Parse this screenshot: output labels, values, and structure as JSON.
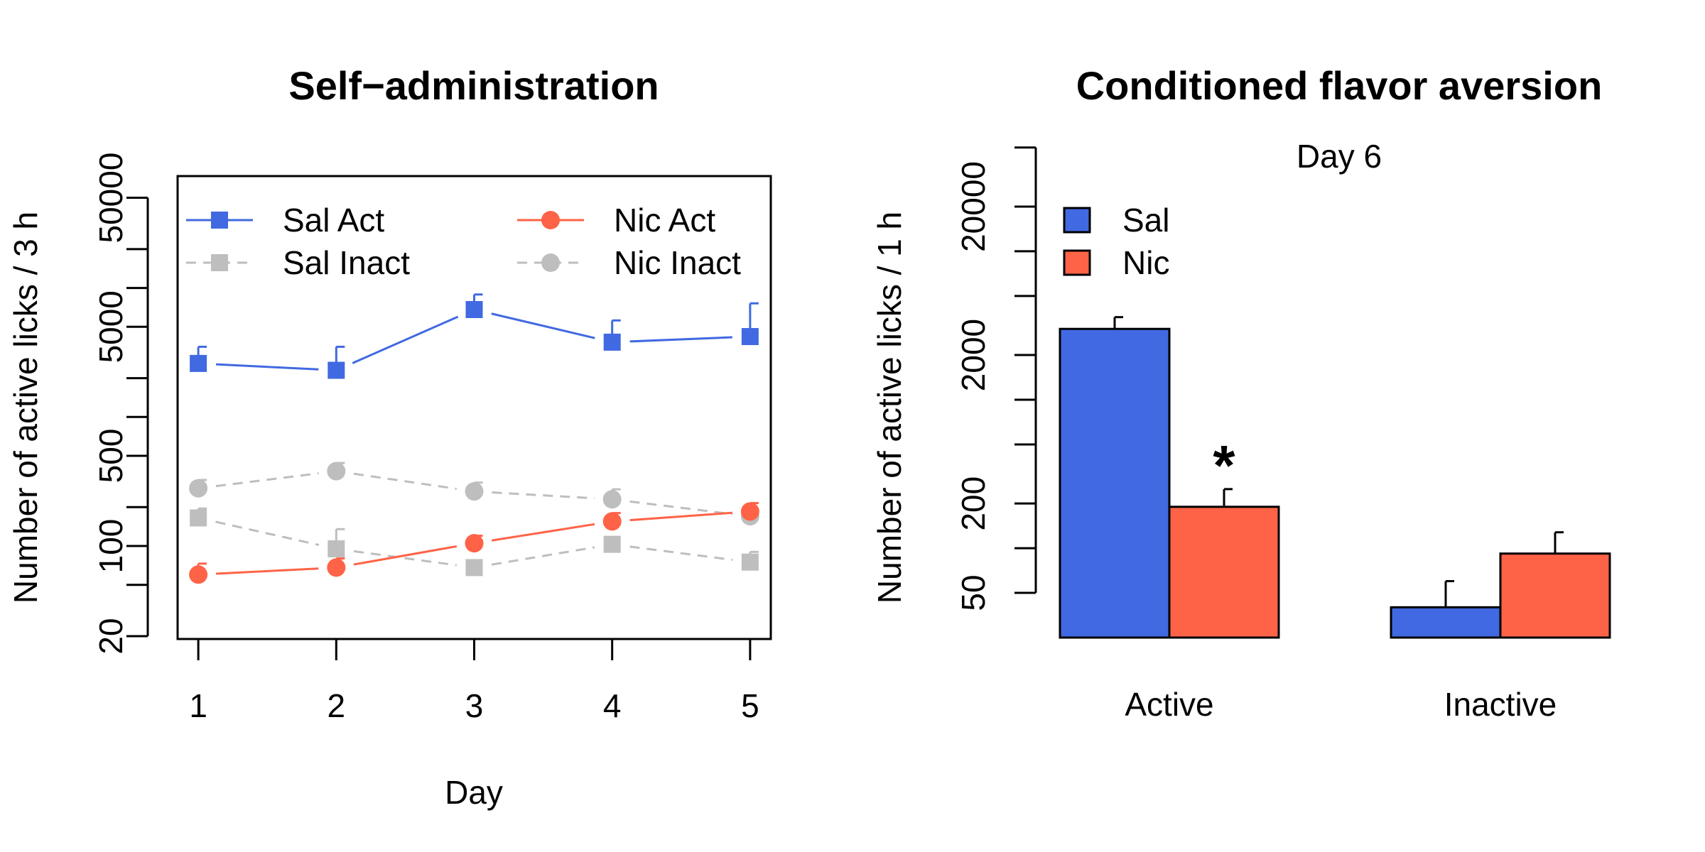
{
  "chart_data": [
    {
      "type": "line",
      "title": "Self−administration",
      "xlabel": "Day",
      "ylabel": "Number of active licks / 3 h",
      "y_scale": "log",
      "ylim": [
        20,
        70000
      ],
      "xlim": [
        0.85,
        5.15
      ],
      "x": [
        1,
        2,
        3,
        4,
        5
      ],
      "x_tick_labels": [
        "1",
        "2",
        "3",
        "4",
        "5"
      ],
      "y_tick_values": [
        20,
        50,
        100,
        200,
        500,
        1000,
        2000,
        5000,
        10000,
        20000,
        50000
      ],
      "y_tick_labels": [
        "20",
        "",
        "100",
        "",
        "500",
        "",
        "",
        "5000",
        "",
        "",
        "50000"
      ],
      "legend": {
        "columns": 2,
        "placement": "top"
      },
      "series": [
        {
          "name": "Sal Act",
          "color": "#4169E1",
          "line": "solid",
          "marker": "square",
          "values": [
            2600,
            2300,
            6800,
            3800,
            4200
          ],
          "error_upper": [
            3500,
            3500,
            8900,
            5600,
            7600
          ]
        },
        {
          "name": "Nic Act",
          "color": "#FF6347",
          "line": "solid",
          "marker": "circle",
          "values": [
            60,
            68,
            105,
            155,
            185
          ],
          "error_upper": [
            73,
            80,
            120,
            180,
            215
          ]
        },
        {
          "name": "Sal Inact",
          "color": "#BEBEBE",
          "line": "dashed",
          "marker": "square",
          "values": [
            165,
            95,
            68,
            103,
            75
          ],
          "error_upper": [
            195,
            135,
            68,
            103,
            90
          ]
        },
        {
          "name": "Nic Inact",
          "color": "#BEBEBE",
          "line": "dashed",
          "marker": "circle",
          "values": [
            280,
            380,
            265,
            230,
            170
          ],
          "error_upper": [
            325,
            440,
            310,
            275,
            170
          ]
        }
      ]
    },
    {
      "type": "bar",
      "title": "Conditioned flavor aversion",
      "subtitle": "Day 6",
      "xlabel": "",
      "ylabel": "Number of active licks / 1 h",
      "y_scale": "log",
      "ylim": [
        25,
        40000
      ],
      "y_tick_values": [
        50,
        100,
        200,
        500,
        1000,
        2000,
        5000,
        10000,
        20000,
        50000
      ],
      "y_tick_labels": [
        "50",
        "",
        "200",
        "",
        "",
        "2000",
        "",
        "",
        "20000",
        ""
      ],
      "categories": [
        "Active",
        "Inactive"
      ],
      "legend": {
        "placement": "top-left"
      },
      "series": [
        {
          "name": "Sal",
          "color": "#4169E1",
          "values": [
            3000,
            40
          ],
          "error_upper": [
            3600,
            60
          ]
        },
        {
          "name": "Nic",
          "color": "#FF6347",
          "values": [
            190,
            92
          ],
          "error_upper": [
            250,
            128
          ]
        }
      ],
      "annotations": [
        {
          "text": "*",
          "category": "Active",
          "series": "Nic"
        }
      ]
    }
  ]
}
